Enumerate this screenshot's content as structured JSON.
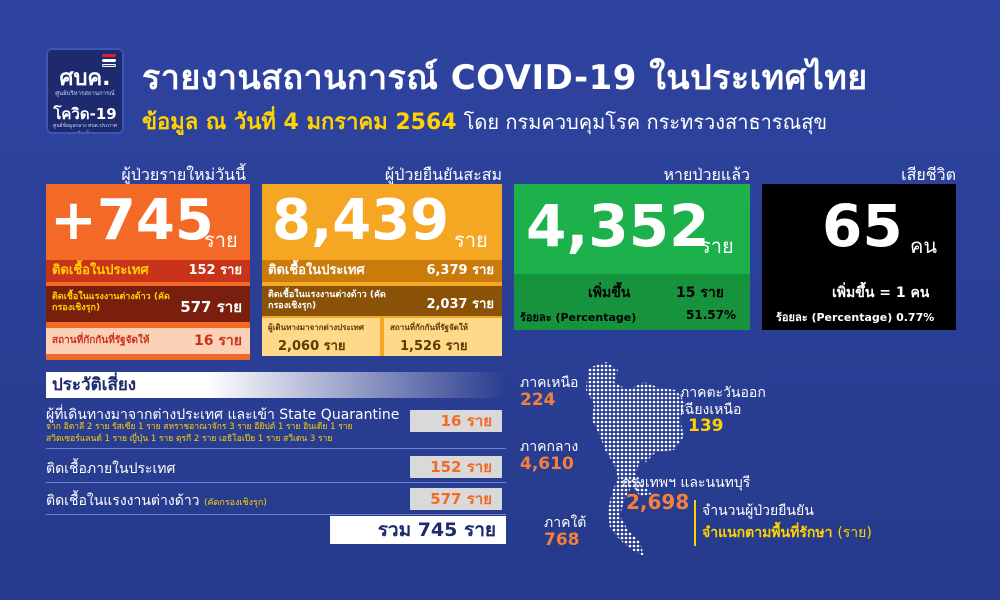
{
  "header": {
    "logo_main": "ศบค.",
    "logo_sub": "ศูนย์บริหารสถานการณ์",
    "logo_name": "โควิด-19",
    "logo_foot": "ศูนย์ข้อมูลกลาง ศบค.ประกาศคิดเห็น",
    "title": "รายงานสถานการณ์ COVID-19 ในประเทศไทย",
    "date_text": "ข้อมูล ณ วันที่ 4 มกราคม 2564",
    "by_text": "โดย กรมควบคุมโรค กระทรวงสาธารณสุข"
  },
  "new_cases": {
    "label": "ผู้ป่วยรายใหม่วันนี้",
    "value": "+745",
    "unit": "ราย",
    "rows": [
      {
        "label": "ติดเชื้อในประเทศ",
        "value": "152 ราย"
      },
      {
        "label": "ติดเชื้อในแรงงานต่างด้าว (คัดกรองเชิงรุก)",
        "value": "577 ราย"
      },
      {
        "label": "สถานที่กักกันที่รัฐจัดให้",
        "value": "16 ราย"
      }
    ]
  },
  "cumulative": {
    "label": "ผู้ป่วยยืนยันสะสม",
    "value": "8,439",
    "unit": "ราย",
    "rows": [
      {
        "label": "ติดเชื้อในประเทศ",
        "value": "6,379 ราย"
      },
      {
        "label": "ติดเชื้อในแรงงานต่างด้าว (คัดกรองเชิงรุก)",
        "value": "2,037 ราย"
      }
    ],
    "sub": [
      {
        "label": "ผู้เดินทางมาจากต่างประเทศ",
        "value": "2,060 ราย"
      },
      {
        "label": "สถานที่กักกันที่รัฐจัดให้",
        "value": "1,526 ราย"
      }
    ]
  },
  "recovered": {
    "label": "หายป่วยแล้ว",
    "value": "4,352",
    "unit": "ราย",
    "increase_label": "เพิ่มขึ้น",
    "increase_value": "15 ราย",
    "pct_label": "ร้อยละ (Percentage)",
    "pct_value": "51.57%"
  },
  "deaths": {
    "label": "เสียชีวิต",
    "value": "65",
    "unit": "คน",
    "increase_text": "เพิ่มขึ้น = 1 คน",
    "pct_text": "ร้อยละ (Percentage) 0.77%"
  },
  "risk": {
    "title": "ประวัติเสี่ยง",
    "items": [
      {
        "label": "ผู้ที่เดินทางมาจากต่างประเทศ และเข้า State Quarantine",
        "detail1": "จาก อิตาลี 2 ราย รัสเซีย 1 ราย สหราชอาณาจักร 3 ราย อียิปต์ 1 ราย อินเดีย 1 ราย",
        "detail2": "สวิตเซอร์แลนด์ 1 ราย ญี่ปุ่น 1 ราย ตุรกี 2 ราย เอธิโอเปีย 1 ราย สวีเดน 3 ราย",
        "value": "16 ราย"
      },
      {
        "label": "ติดเชื้อภายในประเทศ",
        "value": "152 ราย"
      },
      {
        "label": "ติดเชื้อในแรงงานต่างด้าว",
        "note": "(คัดกรองเชิงรุก)",
        "value": "577 ราย"
      }
    ],
    "total": "รวม 745 ราย"
  },
  "regions": {
    "north": {
      "name": "ภาคเหนือ",
      "value": "224"
    },
    "northeast": {
      "name1": "ภาคตะวันออก",
      "name2": "เฉียงเหนือ",
      "value": "139"
    },
    "central": {
      "name": "ภาคกลาง",
      "value": "4,610"
    },
    "bangkok": {
      "name": "กรุงเทพฯ และนนทบุรี",
      "value": "2,698"
    },
    "south": {
      "name": "ภาคใต้",
      "value": "768"
    },
    "legend1": "จำนวนผู้ป่วยยืนยัน",
    "legend2": "จำแนกตามพื้นที่รักษา",
    "legend_unit": "(ราย)"
  },
  "colors": {
    "background": "#2a3c8f",
    "new_card": "#f26a25",
    "cum_card": "#f5a623",
    "rec_card": "#1db14b",
    "death_card": "#000000",
    "highlight": "#ffd200"
  }
}
